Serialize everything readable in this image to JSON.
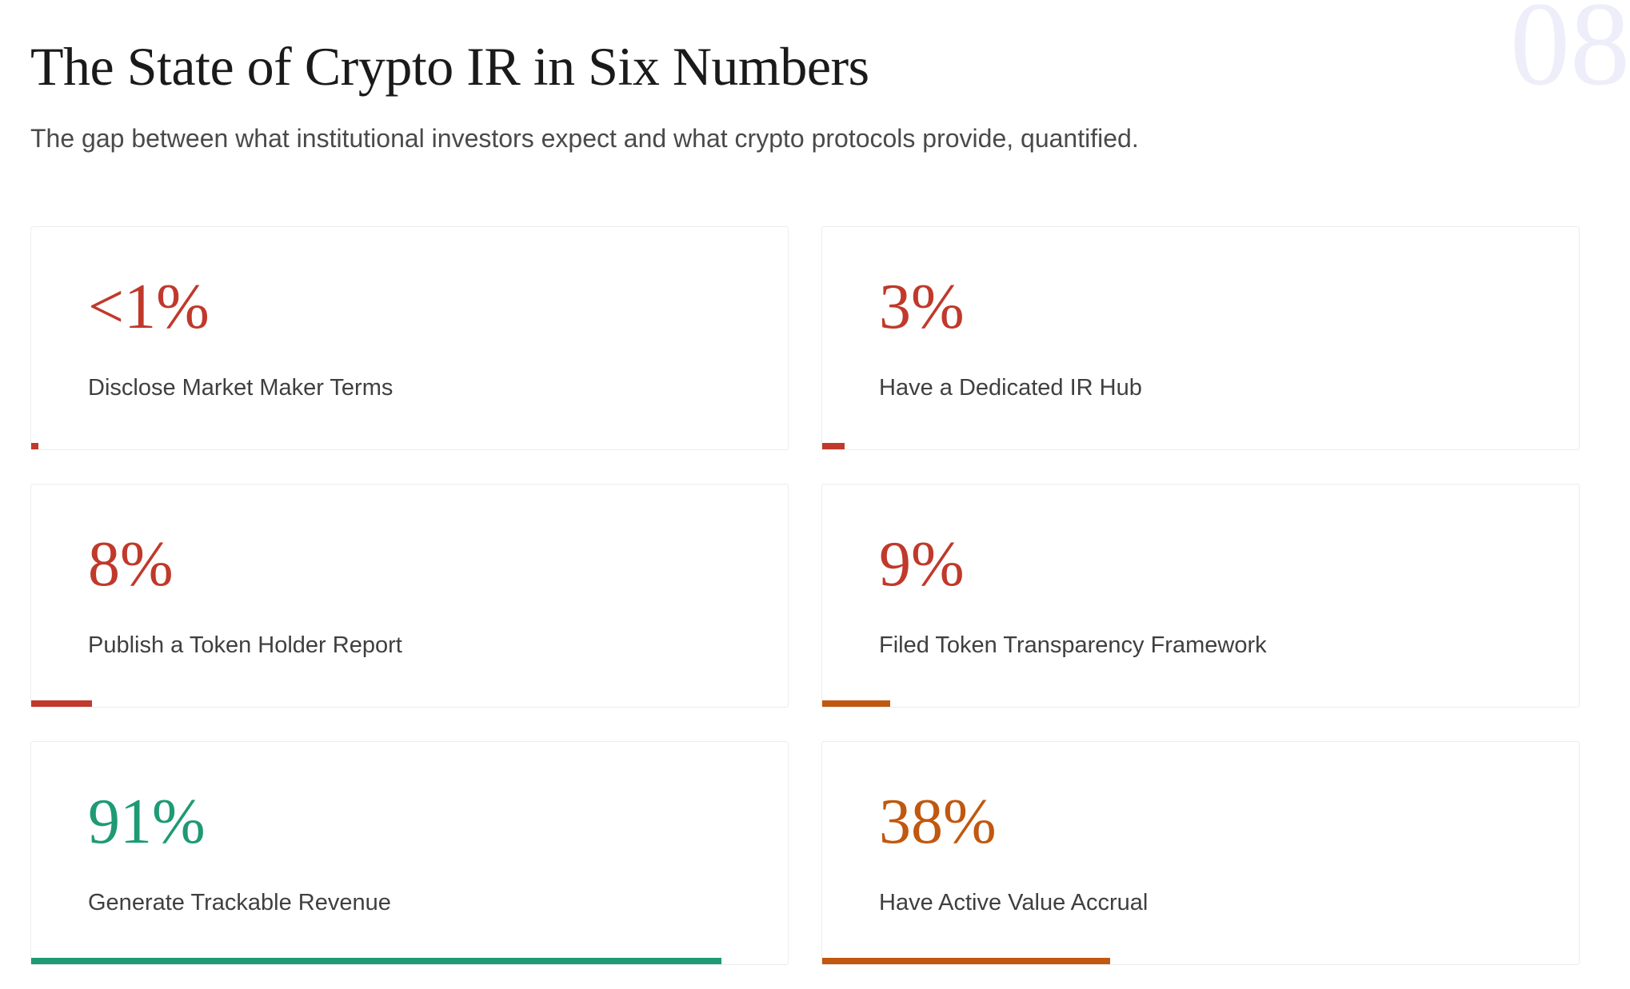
{
  "header": {
    "title": "The State of Crypto IR in Six Numbers",
    "subtitle": "The gap between what institutional investors expect and what crypto protocols provide, quantified.",
    "section_number": "08"
  },
  "cards": [
    {
      "stat": {
        "value": 1,
        "label": "<1%"
      },
      "label": "Disclose Market Maker Terms",
      "color": "#c0392b",
      "bar_color": "#c0392b"
    },
    {
      "stat": {
        "value": 3,
        "label": "3%"
      },
      "label": "Have a Dedicated IR Hub",
      "color": "#c0392b",
      "bar_color": "#c0392b"
    },
    {
      "stat": {
        "value": 8,
        "label": "8%"
      },
      "label": "Publish a Token Holder Report",
      "color": "#c0392b",
      "bar_color": "#c0392b"
    },
    {
      "stat": {
        "value": 9,
        "label": "9%"
      },
      "label": "Filed Token Transparency Framework",
      "color": "#c0392b",
      "bar_color": "#c0580f"
    },
    {
      "stat": {
        "value": 91,
        "label": "91%"
      },
      "label": "Generate Trackable Revenue",
      "color": "#1e9a74",
      "bar_color": "#1e9a74"
    },
    {
      "stat": {
        "value": 38,
        "label": "38%"
      },
      "label": "Have Active Value Accrual",
      "color": "#c0580f",
      "bar_color": "#c0580f"
    }
  ]
}
